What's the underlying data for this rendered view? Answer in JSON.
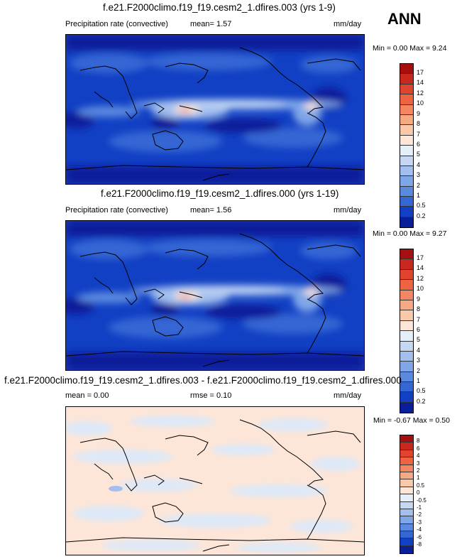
{
  "season": "ANN",
  "panels": [
    {
      "title": "f.e21.F2000climo.f19_f19.cesm2_1.dfires.003 (yrs 1-9)",
      "variable": "Precipitation rate (convective)",
      "mean_text": "mean=   1.57",
      "rmse_text": "",
      "units": "mm/day",
      "min_max": "Min =  0.00 Max =   9.24",
      "colorbar_labels": [
        "17",
        "14",
        "12",
        "10",
        "9",
        "8",
        "7",
        "6",
        "5",
        "4",
        "3",
        "2",
        "1",
        "0.5",
        "0.2"
      ],
      "colorbar_colors": [
        "#a50f0f",
        "#c8281e",
        "#e0442d",
        "#ee6440",
        "#f48662",
        "#f7a984",
        "#fac9a9",
        "#fde6d8",
        "#e6eefa",
        "#c5d7f3",
        "#a2bfee",
        "#7fa6e8",
        "#5a89e0",
        "#3466d4",
        "#1240c4",
        "#0a1e9a"
      ]
    },
    {
      "title": "f.e21.F2000climo.f19_f19.cesm2_1.dfires.000 (yrs 1-19)",
      "variable": "Precipitation rate (convective)",
      "mean_text": "mean=   1.56",
      "rmse_text": "",
      "units": "mm/day",
      "min_max": "Min =  0.00 Max =   9.27",
      "colorbar_labels": [
        "17",
        "14",
        "12",
        "10",
        "9",
        "8",
        "7",
        "6",
        "5",
        "4",
        "3",
        "2",
        "1",
        "0.5",
        "0.2"
      ],
      "colorbar_colors": [
        "#a50f0f",
        "#c8281e",
        "#e0442d",
        "#ee6440",
        "#f48662",
        "#f7a984",
        "#fac9a9",
        "#fde6d8",
        "#e6eefa",
        "#c5d7f3",
        "#a2bfee",
        "#7fa6e8",
        "#5a89e0",
        "#3466d4",
        "#1240c4",
        "#0a1e9a"
      ]
    },
    {
      "title": "f.e21.F2000climo.f19_f19.cesm2_1.dfires.003 - f.e21.F2000climo.f19_f19.cesm2_1.dfires.000",
      "variable": "",
      "mean_text": "mean =   0.00",
      "rmse_text": "rmse =   0.10",
      "units": "mm/day",
      "min_max": "Min =  -0.67 Max =   0.50",
      "colorbar_labels": [
        "8",
        "6",
        "4",
        "3",
        "2",
        "1",
        "0.5",
        "0",
        "-0.5",
        "-1",
        "-2",
        "-3",
        "-4",
        "-6",
        "-8"
      ],
      "colorbar_colors": [
        "#a50f0f",
        "#c8281e",
        "#e0442d",
        "#ee6440",
        "#f48662",
        "#f7a984",
        "#fac9a9",
        "#fde6d8",
        "#e6eefa",
        "#c5d7f3",
        "#a2bfee",
        "#7fa6e8",
        "#5a89e0",
        "#3466d4",
        "#1240c4",
        "#0a1e9a"
      ]
    }
  ]
}
